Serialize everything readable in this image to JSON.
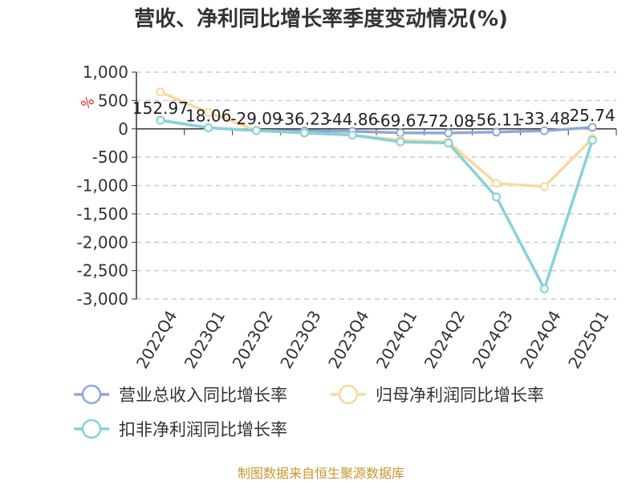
{
  "chart_data": {
    "type": "line",
    "title": "营收、净利同比增长率季度变动情况(%)",
    "ylabel": "%",
    "categories": [
      "2022Q4",
      "2023Q1",
      "2023Q2",
      "2023Q3",
      "2023Q4",
      "2024Q1",
      "2024Q2",
      "2024Q3",
      "2024Q4",
      "2025Q1"
    ],
    "ylim": [
      -3000,
      1000
    ],
    "yticks": [
      1000,
      500,
      0,
      -500,
      -1000,
      -1500,
      -2000,
      -2500,
      -3000
    ],
    "ytick_labels": [
      "1,000",
      "500",
      "0",
      "-500",
      "-1,000",
      "-1,500",
      "-2,000",
      "-2,500",
      "-3,000"
    ],
    "grid": true,
    "legend_position": "bottom",
    "series": [
      {
        "name": "营业总收入同比增长率",
        "color": "#8fa8d8",
        "values": [
          152.97,
          18.06,
          -29.09,
          -36.23,
          -44.86,
          -69.67,
          -72.08,
          -56.11,
          -33.48,
          25.74
        ],
        "labels": [
          "152.97",
          "18.06",
          "-29.09",
          "-36.23",
          "-44.86",
          "-69.67",
          "-72.08",
          "-56.11",
          "-33.48",
          "25.74"
        ]
      },
      {
        "name": "归母净利润同比增长率",
        "color": "#f9d99c",
        "values": [
          650,
          290,
          -30,
          -75,
          -110,
          -200,
          -230,
          -960,
          -1020,
          -170
        ]
      },
      {
        "name": "扣非净利润同比增长率",
        "color": "#86d2d5",
        "values": [
          150,
          20,
          -30,
          -70,
          -110,
          -230,
          -250,
          -1200,
          -2820,
          -200
        ]
      }
    ]
  },
  "source": "制图数据来自恒生聚源数据库"
}
